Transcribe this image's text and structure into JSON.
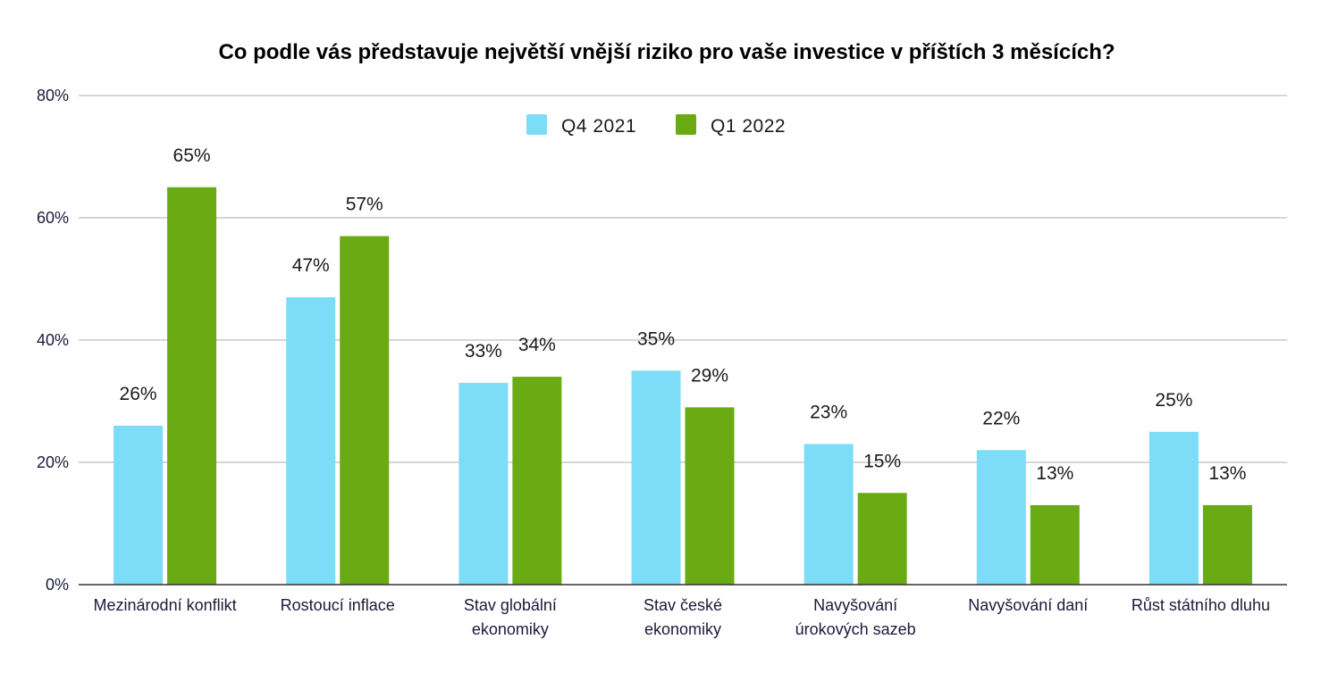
{
  "chart_data": {
    "type": "bar",
    "title": "Co podle vás představuje největší vnější riziko pro vaše investice v příštích 3 měsících?",
    "categories": [
      [
        "Mezinárodní konflikt"
      ],
      [
        "Rostoucí inflace"
      ],
      [
        "Stav globální",
        "ekonomiky"
      ],
      [
        "Stav české",
        "ekonomiky"
      ],
      [
        "Navyšování",
        "úrokových sazeb"
      ],
      [
        "Navyšování daní"
      ],
      [
        "Růst státního dluhu"
      ]
    ],
    "series": [
      {
        "name": "Q4 2021",
        "color": "#7ddcf8",
        "values": [
          26,
          47,
          33,
          35,
          23,
          22,
          25
        ],
        "labels": [
          "26%",
          "47%",
          "33%",
          "35%",
          "23%",
          "22%",
          "25%"
        ]
      },
      {
        "name": "Q1 2022",
        "color": "#6aaa12",
        "values": [
          65,
          57,
          34,
          29,
          15,
          13,
          13
        ],
        "labels": [
          "65%",
          "57%",
          "34%",
          "29%",
          "15%",
          "13%",
          "13%"
        ]
      }
    ],
    "ylim": [
      0,
      80
    ],
    "yticks": [
      "0%",
      "20%",
      "40%",
      "60%",
      "80%"
    ],
    "ytick_values": [
      0,
      20,
      40,
      60,
      80
    ],
    "grid": true,
    "legend_position": "top-center"
  }
}
